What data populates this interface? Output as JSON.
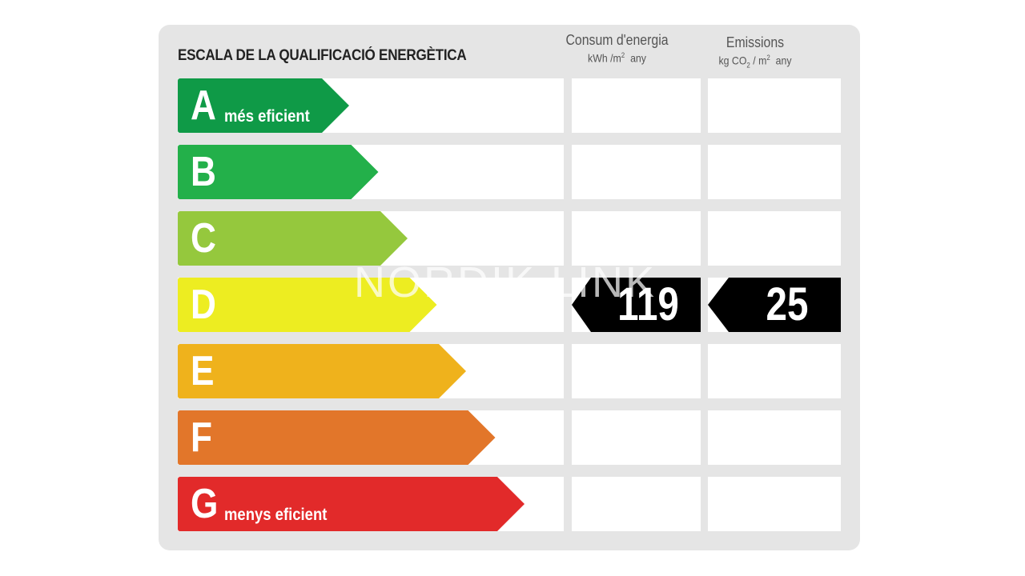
{
  "header": {
    "title": "ESCALA DE LA QUALIFICACIÓ ENERGÈTICA",
    "consum": {
      "label": "Consum d'energia",
      "unit_prefix": "kWh /m",
      "unit_sup": "2",
      "unit_suffix": "any"
    },
    "emissions": {
      "label": "Emissions",
      "unit_prefix": "kg CO",
      "unit_sub": "2",
      "unit_mid": " / m",
      "unit_sup": "2",
      "unit_suffix": "any"
    }
  },
  "classes": [
    {
      "letter": "A",
      "label": "més eficient",
      "color": "#0f9a47"
    },
    {
      "letter": "B",
      "label": "",
      "color": "#23b04a"
    },
    {
      "letter": "C",
      "label": "",
      "color": "#95c83d"
    },
    {
      "letter": "D",
      "label": "",
      "color": "#eded21"
    },
    {
      "letter": "E",
      "label": "",
      "color": "#efb21c"
    },
    {
      "letter": "F",
      "label": "",
      "color": "#e2762a"
    },
    {
      "letter": "G",
      "label": "menys eficient",
      "color": "#e22a2a"
    }
  ],
  "rating": {
    "class": "D",
    "consum_value": "119",
    "emissions_value": "25",
    "marker_color": "#000000"
  },
  "watermark": "NORDIK LINK"
}
